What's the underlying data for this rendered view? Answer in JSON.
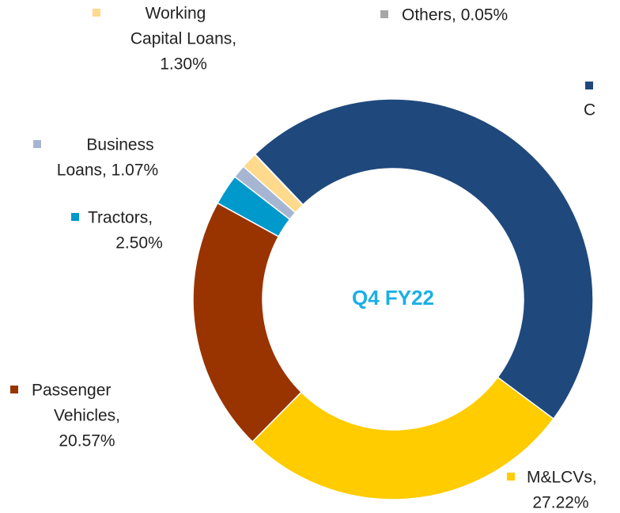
{
  "chart_data": {
    "type": "donut",
    "center_label": "Q4 FY22",
    "labels": [
      [
        "C"
      ],
      [
        "M&LCVs,",
        "27.22%"
      ],
      [
        "Passenger",
        "Vehicles,",
        "20.57%"
      ],
      [
        "Tractors,",
        "2.50%"
      ],
      [
        "Business",
        "Loans, 1.07%"
      ],
      [
        "Working",
        "Capital Loans,",
        "1.30%"
      ],
      [
        "Others, 0.05%"
      ]
    ],
    "values": [
      47.29,
      27.22,
      20.57,
      2.5,
      1.07,
      1.3,
      0.05
    ],
    "colors": [
      "#1f497d",
      "#ffcc00",
      "#993300",
      "#0099cc",
      "#a6b6d2",
      "#ffd98c",
      "#a6a6a6"
    ]
  }
}
